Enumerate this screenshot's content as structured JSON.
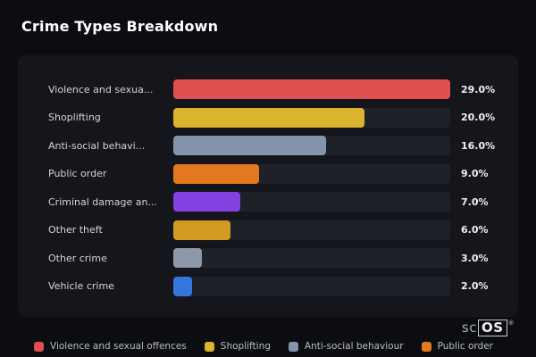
{
  "title": "Crime Types Breakdown",
  "watermark": {
    "prefix": "sc",
    "boxed": "OS",
    "reg": "®"
  },
  "chart_data": {
    "type": "bar",
    "orientation": "horizontal",
    "title": "Crime Types Breakdown",
    "xlabel": "",
    "ylabel": "",
    "scale_max": 29,
    "grid": false,
    "legend_position": "bottom",
    "categories": [
      "Violence and sexua...",
      "Shoplifting",
      "Anti-social behavi...",
      "Public order",
      "Criminal damage an...",
      "Other theft",
      "Other crime",
      "Vehicle crime"
    ],
    "values": [
      29,
      20,
      16,
      9,
      7,
      6,
      3,
      2
    ],
    "value_labels": [
      "29.0%",
      "20.0%",
      "16.0%",
      "9.0%",
      "7.0%",
      "6.0%",
      "3.0%",
      "2.0%"
    ],
    "colors": [
      "#e04f4f",
      "#dcb32d",
      "#8494ab",
      "#e2791e",
      "#8440e0",
      "#d29a21",
      "#8d98a8",
      "#3575e0"
    ],
    "legend": [
      {
        "label": "Violence and sexual offences",
        "color": "#e04f4f"
      },
      {
        "label": "Shoplifting",
        "color": "#dcb32d"
      },
      {
        "label": "Anti-social behaviour",
        "color": "#8494ab"
      },
      {
        "label": "Public order",
        "color": "#e2791e"
      }
    ]
  }
}
